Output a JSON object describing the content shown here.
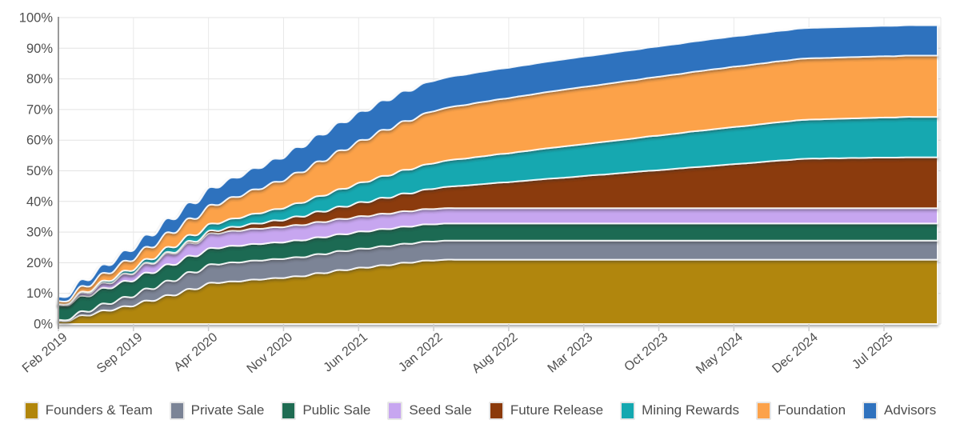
{
  "chart_data": {
    "type": "area",
    "stacked": true,
    "title": "",
    "xlabel": "",
    "ylabel": "",
    "ylim": [
      0,
      100
    ],
    "grid": true,
    "x_unit": "months since Feb 2019",
    "x_range_months": [
      0,
      82
    ],
    "y_tick_labels": [
      "0%",
      "10%",
      "20%",
      "30%",
      "40%",
      "50%",
      "60%",
      "70%",
      "80%",
      "90%",
      "100%"
    ],
    "x_ticks": [
      {
        "month": 0,
        "label": "Feb 2019"
      },
      {
        "month": 7,
        "label": "Sep 2019"
      },
      {
        "month": 14,
        "label": "Apr 2020"
      },
      {
        "month": 21,
        "label": "Nov 2020"
      },
      {
        "month": 28,
        "label": "Jun 2021"
      },
      {
        "month": 35,
        "label": "Jan 2022"
      },
      {
        "month": 42,
        "label": "Aug 2022"
      },
      {
        "month": 49,
        "label": "Mar 2023"
      },
      {
        "month": 56,
        "label": "Oct 2023"
      },
      {
        "month": 63,
        "label": "May 2024"
      },
      {
        "month": 70,
        "label": "Dec 2024"
      },
      {
        "month": 77,
        "label": "Jul 2025"
      }
    ],
    "legend_position": "bottom",
    "series_unit": "percent of total supply released (cumulative)",
    "series": [
      {
        "name": "Founders & Team",
        "color": "#B1860B",
        "values": [
          1,
          1,
          2.8,
          2.8,
          4.4,
          4.4,
          5.8,
          5.8,
          7.6,
          7.6,
          9.4,
          9.4,
          11.4,
          11.4,
          13.4,
          13.4,
          13.9,
          13.9,
          14.5,
          14.5,
          15,
          15,
          15.6,
          15.6,
          16.6,
          16.6,
          17.6,
          17.6,
          18.4,
          18.4,
          19.2,
          19.2,
          20,
          20,
          20.7,
          20.7,
          21,
          21,
          21,
          21,
          21,
          21,
          21,
          21,
          21,
          21,
          21,
          21,
          21,
          21,
          21,
          21,
          21,
          21,
          21,
          21,
          21,
          21,
          21,
          21,
          21,
          21,
          21,
          21,
          21,
          21,
          21,
          21,
          21,
          21,
          21,
          21,
          21,
          21,
          21,
          21,
          21,
          21,
          21,
          21,
          21,
          21,
          21
        ]
      },
      {
        "name": "Private Sale",
        "color": "#7B8496",
        "values": [
          0.4,
          0.4,
          1.3,
          1.3,
          2.2,
          2.2,
          3,
          3,
          3.9,
          3.9,
          4.7,
          4.7,
          5.5,
          5.5,
          6,
          6,
          6.2,
          6.2,
          6.2,
          6.2,
          6.2,
          6.2,
          6.2,
          6.2,
          6.2,
          6.2,
          6.2,
          6.2,
          6.2,
          6.2,
          6.2,
          6.2,
          6.2,
          6.2,
          6.2,
          6.2,
          6.2,
          6.2,
          6.2,
          6.2,
          6.2,
          6.2,
          6.2,
          6.2,
          6.2,
          6.2,
          6.2,
          6.2,
          6.2,
          6.2,
          6.2,
          6.2,
          6.2,
          6.2,
          6.2,
          6.2,
          6.2,
          6.2,
          6.2,
          6.2,
          6.2,
          6.2,
          6.2,
          6.2,
          6.2,
          6.2,
          6.2,
          6.2,
          6.2,
          6.2,
          6.2,
          6.2,
          6.2,
          6.2,
          6.2,
          6.2,
          6.2,
          6.2,
          6.2,
          6.2,
          6.2,
          6.2,
          6.2
        ]
      },
      {
        "name": "Public Sale",
        "color": "#1E6B52",
        "values": [
          4.8,
          4.8,
          5,
          5,
          5.1,
          5.1,
          5.2,
          5.2,
          5.2,
          5.2,
          5.3,
          5.3,
          5.3,
          5.3,
          5.3,
          5.3,
          5.4,
          5.4,
          5.4,
          5.4,
          5.4,
          5.4,
          5.5,
          5.5,
          5.5,
          5.5,
          5.5,
          5.5,
          5.6,
          5.6,
          5.6,
          5.6,
          5.6,
          5.6,
          5.6,
          5.6,
          5.6,
          5.6,
          5.6,
          5.6,
          5.6,
          5.6,
          5.6,
          5.6,
          5.6,
          5.6,
          5.6,
          5.6,
          5.6,
          5.6,
          5.6,
          5.6,
          5.6,
          5.6,
          5.6,
          5.6,
          5.6,
          5.6,
          5.6,
          5.6,
          5.6,
          5.6,
          5.6,
          5.6,
          5.6,
          5.6,
          5.6,
          5.6,
          5.6,
          5.6,
          5.6,
          5.6,
          5.6,
          5.6,
          5.6,
          5.6,
          5.6,
          5.6,
          5.6,
          5.6,
          5.6,
          5.6,
          5.6
        ]
      },
      {
        "name": "Seed Sale",
        "color": "#C7A6F0",
        "values": [
          0.3,
          0.3,
          1,
          1,
          1.7,
          1.7,
          2.3,
          2.3,
          3,
          3,
          3.6,
          3.6,
          4.2,
          4.2,
          4.8,
          4.8,
          4.9,
          4.9,
          5,
          5,
          5,
          5,
          5,
          5,
          5,
          5,
          5,
          5,
          5,
          5,
          5,
          5,
          5,
          5,
          5,
          5,
          5,
          5,
          5,
          5,
          5,
          5,
          5,
          5,
          5,
          5,
          5,
          5,
          5,
          5,
          5,
          5,
          5,
          5,
          5,
          5,
          5,
          5,
          5,
          5,
          5,
          5,
          5,
          5,
          5,
          5,
          5,
          5,
          5,
          5,
          5,
          5,
          5,
          5,
          5,
          5,
          5,
          5,
          5,
          5,
          5,
          5,
          5
        ]
      },
      {
        "name": "Future Release",
        "color": "#8B3A0B",
        "values": [
          0,
          0,
          0,
          0,
          0,
          0,
          0.1,
          0.1,
          0.2,
          0.2,
          0.4,
          0.4,
          0.6,
          0.6,
          0.9,
          0.9,
          1.3,
          1.3,
          1.7,
          1.7,
          2.2,
          2.2,
          2.8,
          2.8,
          3.4,
          3.4,
          4,
          4,
          4.6,
          4.6,
          5.2,
          5.2,
          5.8,
          5.8,
          6.3,
          6.6,
          6.9,
          7.2,
          7.4,
          7.7,
          8,
          8.3,
          8.5,
          8.8,
          9.1,
          9.4,
          9.7,
          9.9,
          10.2,
          10.5,
          10.8,
          11,
          11.3,
          11.6,
          11.9,
          12.2,
          12.4,
          12.7,
          13,
          13.3,
          13.5,
          13.8,
          14.1,
          14.4,
          14.6,
          14.9,
          15.2,
          15.5,
          15.7,
          16,
          16.2,
          16.2,
          16.3,
          16.3,
          16.4,
          16.4,
          16.5,
          16.5,
          16.5,
          16.6,
          16.6,
          16.6,
          16.6
        ]
      },
      {
        "name": "Mining Rewards",
        "color": "#14A8B0",
        "values": [
          0,
          0.2,
          0.3,
          0.5,
          0.6,
          0.8,
          0.9,
          1.1,
          1.2,
          1.4,
          1.6,
          1.8,
          1.9,
          2.1,
          2.2,
          2.4,
          2.6,
          2.9,
          3.1,
          3.4,
          3.6,
          3.9,
          4.2,
          4.6,
          4.9,
          5.3,
          5.6,
          6,
          6.3,
          6.7,
          7,
          7.3,
          7.6,
          7.9,
          8.1,
          8.3,
          8.5,
          8.7,
          8.8,
          9,
          9.1,
          9.3,
          9.4,
          9.6,
          9.7,
          9.9,
          10,
          10.2,
          10.3,
          10.4,
          10.5,
          10.7,
          10.8,
          10.9,
          11,
          11.2,
          11.3,
          11.4,
          11.5,
          11.7,
          11.8,
          11.9,
          12,
          12.1,
          12.2,
          12.3,
          12.4,
          12.5,
          12.6,
          12.7,
          12.7,
          12.8,
          12.8,
          12.9,
          12.9,
          13,
          13,
          13.1,
          13.1,
          13.2,
          13.2,
          13.2,
          13.2
        ]
      },
      {
        "name": "Foundation",
        "color": "#FCA24A",
        "values": [
          1,
          1,
          1.8,
          1.8,
          2.5,
          2.5,
          3.2,
          3.2,
          3.9,
          3.9,
          4.7,
          4.7,
          5.4,
          5.4,
          6.1,
          6.1,
          7,
          7,
          7.9,
          7.9,
          8.9,
          8.9,
          10,
          10,
          11.3,
          11.3,
          12.6,
          12.6,
          13.8,
          13.8,
          15,
          15,
          15.9,
          15.9,
          16.7,
          17,
          17.2,
          17.4,
          17.5,
          17.7,
          17.8,
          17.9,
          18,
          18.1,
          18.2,
          18.3,
          18.4,
          18.5,
          18.6,
          18.7,
          18.7,
          18.8,
          18.9,
          19,
          19,
          19.1,
          19.2,
          19.3,
          19.3,
          19.4,
          19.5,
          19.6,
          19.6,
          19.7,
          19.7,
          19.8,
          19.8,
          19.9,
          19.9,
          20,
          20,
          20,
          20,
          20,
          20,
          20,
          20,
          20,
          20,
          20,
          20,
          20,
          20
        ]
      },
      {
        "name": "Advisors",
        "color": "#2F72BE",
        "values": [
          1.5,
          1.5,
          2.1,
          2.1,
          2.7,
          2.7,
          3.3,
          3.3,
          3.9,
          3.9,
          4.5,
          4.5,
          5.1,
          5.1,
          5.7,
          5.7,
          6.3,
          6.3,
          6.9,
          6.9,
          7.5,
          7.5,
          8.2,
          8.2,
          8.7,
          8.7,
          9.1,
          9.1,
          9.4,
          9.4,
          9.6,
          9.6,
          9.8,
          9.8,
          9.9,
          9.9,
          9.9,
          9.9,
          9.9,
          9.9,
          9.9,
          9.9,
          9.9,
          9.9,
          9.9,
          9.9,
          9.9,
          9.9,
          9.9,
          9.9,
          9.9,
          9.9,
          9.9,
          9.9,
          9.9,
          9.9,
          9.9,
          9.9,
          9.9,
          9.9,
          9.9,
          9.9,
          9.9,
          9.9,
          9.9,
          9.9,
          9.9,
          9.9,
          9.9,
          9.9,
          9.9,
          9.9,
          9.9,
          9.9,
          9.9,
          9.9,
          9.9,
          9.9,
          9.9,
          9.9,
          9.9,
          9.9,
          9.9
        ]
      }
    ],
    "style": {
      "background": "#ffffff",
      "grid_color": "#e3e3e3",
      "vgrid_color": "#e8e8e8",
      "axis_line_color": "#9a9a9a",
      "tick_stub_color": "#cccccc",
      "tick_label_color": "#4f4f4f",
      "band_outline_color": "rgba(255,255,255,0.88)"
    }
  }
}
